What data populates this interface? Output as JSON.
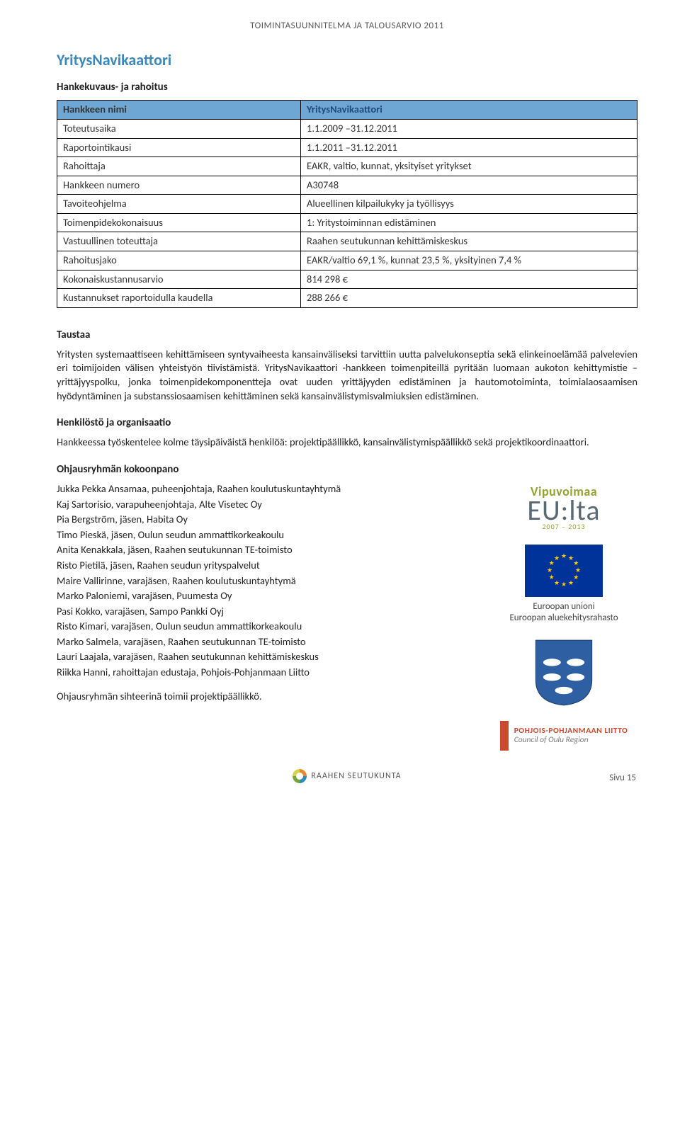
{
  "running_header": "TOIMINTASUUNNITELMA JA TALOUSARVIO 2011",
  "section_title": "YritysNavikaattori",
  "table_heading": "Hankekuvaus- ja rahoitus",
  "table": {
    "header_left": "Hankkeen nimi",
    "header_right": "YritysNavikaattori",
    "rows": [
      {
        "label": "Toteutusaika",
        "value": "1.1.2009 –31.12.2011"
      },
      {
        "label": "Raportointikausi",
        "value": "1.1.2011 –31.12.2011"
      },
      {
        "label": "Rahoittaja",
        "value": "EAKR, valtio, kunnat, yksityiset yritykset"
      },
      {
        "label": "Hankkeen numero",
        "value": "A30748"
      },
      {
        "label": "Tavoiteohjelma",
        "value": "Alueellinen kilpailukyky ja työllisyys"
      },
      {
        "label": "Toimenpidekokonaisuus",
        "value": "1: Yritystoiminnan edistäminen"
      },
      {
        "label": "Vastuullinen toteuttaja",
        "value": "Raahen seutukunnan kehittämiskeskus"
      },
      {
        "label": "Rahoitusjako",
        "value": "EAKR/valtio 69,1 %, kunnat 23,5 %, yksityinen 7,4 %"
      },
      {
        "label": "Kokonaiskustannusarvio",
        "value": "814 298 €"
      },
      {
        "label": "Kustannukset raportoidulla kaudella",
        "value": "288 266 €"
      }
    ]
  },
  "taustaa": {
    "heading": "Taustaa",
    "text": "Yritysten systemaattiseen kehittämiseen syntyvaiheesta kansainväliseksi tarvittiin uutta palvelukonseptia sekä elinkeinoelämää palvelevien eri toimijoiden välisen yhteistyön tiivistämistä. YritysNavikaattori -hankkeen toimenpiteillä pyritään luomaan aukoton kehittymistie – yrittäjyyspolku, jonka toimenpidekomponentteja ovat uuden yrittäjyyden edistäminen ja hautomotoiminta, toimialaosaamisen hyödyntäminen ja substanssiosaamisen kehittäminen sekä kansainvälistymisvalmiuksien edistäminen."
  },
  "henkilosto": {
    "heading": "Henkilöstö ja organisaatio",
    "text": "Hankkeessa työskentelee kolme täysipäiväistä henkilöä: projektipäällikkö, kansainvälistymispäällikkö  sekä projektikoordinaattori."
  },
  "ohjaus": {
    "heading": "Ohjausryhmän kokoonpano",
    "members": [
      "Jukka Pekka Ansamaa, puheenjohtaja, Raahen koulutuskuntayhtymä",
      "Kaj Sartorisio, varapuheenjohtaja, Alte Visetec Oy",
      "Pia Bergström, jäsen, Habita Oy",
      "Timo Pieskä, jäsen, Oulun seudun ammattikorkeakoulu",
      "Anita Kenakkala, jäsen, Raahen seutukunnan TE-toimisto",
      "Risto Pietilä, jäsen, Raahen seudun yrityspalvelut",
      "Maire Vallirinne, varajäsen, Raahen koulutuskuntayhtymä",
      "Marko Paloniemi, varajäsen, Puumesta Oy",
      "Pasi Kokko, varajäsen, Sampo Pankki Oyj",
      "Risto Kimari, varajäsen, Oulun seudun ammattikorkeakoulu",
      "Marko Salmela, varajäsen, Raahen seutukunnan TE-toimisto",
      "Lauri Laajala, varajäsen, Raahen seutukunnan kehittämiskeskus",
      "Riikka Hanni, rahoittajan edustaja, Pohjois-Pohjanmaan Liitto"
    ],
    "secretary": "Ohjausryhmän sihteerinä toimii projektipäällikkö."
  },
  "logos": {
    "vipu_top": "Vipuvoimaa",
    "vipu_mid": "EU:lta",
    "vipu_years": "2007 – 2013",
    "eu_caption_1": "Euroopan unioni",
    "eu_caption_2": "Euroopan aluekehitysrahasto",
    "eu_flag_bg": "#003399",
    "eu_star": "#ffcc00",
    "shield_bg": "#2e5fa3",
    "shield_feature": "#ffffff",
    "ppl_1": "POHJOIS-POHJANMAAN LIITTO",
    "ppl_2": "Council of Oulu Region",
    "ppl_color": "#c94a2f"
  },
  "footer": {
    "brand": "RAAHEN SEUTUKUNTA",
    "page": "Sivu 15"
  },
  "colors": {
    "title_color": "#3b87b8",
    "table_header_bg": "#6fa7d4",
    "text": "#333333"
  }
}
